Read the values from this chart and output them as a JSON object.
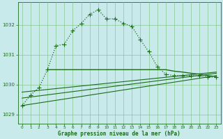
{
  "background_color": "#c8eaea",
  "line_color": "#1a6b1a",
  "grid_color": "#7abf7a",
  "xlabel": "Graphe pression niveau de la mer (hPa)",
  "ylim": [
    1028.7,
    1032.75
  ],
  "xlim": [
    -0.5,
    23.5
  ],
  "yticks": [
    1029,
    1030,
    1031,
    1032
  ],
  "xticks": [
    0,
    1,
    2,
    3,
    4,
    5,
    6,
    7,
    8,
    9,
    10,
    11,
    12,
    13,
    14,
    15,
    16,
    17,
    18,
    19,
    20,
    21,
    22,
    23
  ],
  "main_x": [
    0,
    1,
    2,
    3,
    4,
    5,
    6,
    7,
    8,
    9,
    10,
    11,
    12,
    13,
    14,
    15,
    16,
    17,
    18,
    19,
    20,
    21,
    22,
    23
  ],
  "main_y": [
    1029.3,
    1029.65,
    1029.9,
    1030.5,
    1031.3,
    1031.35,
    1031.8,
    1032.05,
    1032.35,
    1032.5,
    1032.2,
    1032.2,
    1032.05,
    1031.95,
    1031.5,
    1031.1,
    1030.6,
    1030.35,
    1030.3,
    1030.3,
    1030.3,
    1030.3,
    1030.25,
    1030.25
  ],
  "flat_x": [
    3,
    4,
    5,
    6,
    7,
    8,
    9,
    10,
    11,
    12,
    13,
    14,
    15,
    16,
    17,
    18,
    19,
    20,
    21,
    22,
    23
  ],
  "flat_y": [
    1030.5,
    1030.5,
    1030.5,
    1030.5,
    1030.5,
    1030.5,
    1030.5,
    1030.5,
    1030.5,
    1030.5,
    1030.5,
    1030.5,
    1030.5,
    1030.5,
    1030.5,
    1030.45,
    1030.42,
    1030.38,
    1030.35,
    1030.3,
    1030.27
  ],
  "trend1_x": [
    0,
    23
  ],
  "trend1_y": [
    1029.3,
    1030.3
  ],
  "trend2_x": [
    0,
    23
  ],
  "trend2_y": [
    1029.55,
    1030.38
  ],
  "trend3_x": [
    0,
    23
  ],
  "trend3_y": [
    1029.75,
    1030.42
  ]
}
